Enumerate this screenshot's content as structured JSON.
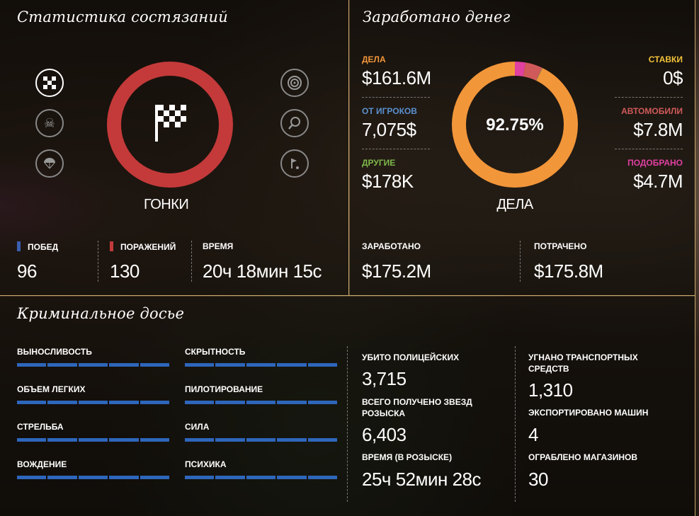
{
  "race_panel": {
    "title": "Статистика состязаний",
    "mode_label": "ГОНКИ",
    "ring": {
      "wins": 96,
      "losses": 130,
      "wins_color": "#3a5fb0",
      "losses_color": "#c43a3a"
    },
    "left_icons": [
      "checkered-flag-icon",
      "skull-icon",
      "parachute-icon"
    ],
    "right_icons": [
      "target-icon",
      "tennis-icon",
      "golf-icon"
    ],
    "stats": [
      {
        "label": "ПОБЕД",
        "value": "96",
        "marker_color": "#3a5fb0"
      },
      {
        "label": "ПОРАЖЕНИЙ",
        "value": "130",
        "marker_color": "#c43a3a"
      },
      {
        "label": "ВРЕМЯ",
        "value": "20ч 18мин 15с"
      }
    ]
  },
  "money_panel": {
    "title": "Заработано денег",
    "center_pct": "92.75%",
    "center_label": "ДЕЛА",
    "left": [
      {
        "label": "ДЕЛА",
        "value": "$161.6M",
        "color": "#f2963a"
      },
      {
        "label": "ОТ ИГРОКОВ",
        "value": "7,075$",
        "color": "#5a90d0"
      },
      {
        "label": "ДРУГИЕ",
        "value": "$178K",
        "color": "#7fb84a"
      }
    ],
    "right": [
      {
        "label": "СТАВКИ",
        "value": "0$",
        "color": "#f2c23a"
      },
      {
        "label": "АВТОМОБИЛИ",
        "value": "$7.8M",
        "color": "#d05a5a"
      },
      {
        "label": "ПОДОБРАНО",
        "value": "$4.7M",
        "color": "#e040a0"
      }
    ],
    "donut_segments": [
      {
        "name": "ДЕЛА",
        "share": 0.9275,
        "color": "#f2963a"
      },
      {
        "name": "ПОДОБРАНО",
        "share": 0.027,
        "color": "#e040a0"
      },
      {
        "name": "АВТОМОБИЛИ",
        "share": 0.0445,
        "color": "#d05a5a"
      },
      {
        "name": "ДРУГИЕ",
        "share": 0.001,
        "color": "#7fb84a"
      }
    ],
    "totals": [
      {
        "label": "ЗАРАБОТАНО",
        "value": "$175.2M"
      },
      {
        "label": "ПОТРАЧЕНО",
        "value": "$175.8M"
      }
    ]
  },
  "crime_panel": {
    "title": "Криминальное досье",
    "skills_left": [
      "ВЫНОСЛИВОСТЬ",
      "ОБЪЕМ ЛЕГКИХ",
      "СТРЕЛЬБА",
      "ВОЖДЕНИЕ"
    ],
    "skills_right": [
      "СКРЫТНОСТЬ",
      "ПИЛОТИРОВАНИЕ",
      "СИЛА",
      "ПСИХИКА"
    ],
    "skill_level": 1.0,
    "stats_left": [
      {
        "label": "УБИТО ПОЛИЦЕЙСКИХ",
        "value": "3,715"
      },
      {
        "label": "ВСЕГО ПОЛУЧЕНО ЗВЕЗД РОЗЫСКА",
        "value": "6,403"
      },
      {
        "label": "ВРЕМЯ (В РОЗЫСКЕ)",
        "value": "25ч 52мин 28с"
      }
    ],
    "stats_right": [
      {
        "label": "УГНАНО ТРАНСПОРТНЫХ СРЕДСТВ",
        "value": "1,310"
      },
      {
        "label": "ЭКСПОРТИРОВАНО МАШИН",
        "value": "4"
      },
      {
        "label": "ОГРАБЛЕНО МАГАЗИНОВ",
        "value": "30"
      }
    ]
  }
}
